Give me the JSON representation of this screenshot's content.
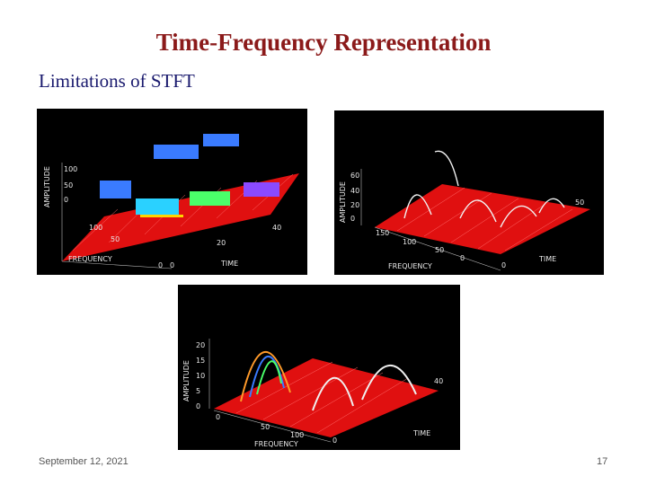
{
  "slide": {
    "title": "Time-Frequency Representation",
    "subtitle": "Limitations of STFT",
    "date": "September 12, 2021",
    "page_number": "17"
  },
  "plots": [
    {
      "z_label": "AMPLITUDE",
      "x_label": "FREQUENCY",
      "y_label": "TIME",
      "freq_ticks": [
        "100",
        "50",
        "0"
      ],
      "time_ticks": [
        "0",
        "20",
        "40"
      ],
      "z_ticks": [
        "100",
        "50",
        "0"
      ]
    },
    {
      "z_label": "AMPLITUDE",
      "x_label": "FREQUENCY",
      "y_label": "TIME",
      "freq_ticks": [
        "150",
        "100",
        "50",
        "0"
      ],
      "time_ticks": [
        "0",
        "50"
      ],
      "z_ticks": [
        "60",
        "40",
        "20",
        "0"
      ]
    },
    {
      "z_label": "AMPLITUDE",
      "x_label": "FREQUENCY",
      "y_label": "TIME",
      "freq_ticks": [
        "0",
        "50",
        "100"
      ],
      "time_ticks": [
        "0",
        "40"
      ],
      "z_ticks": [
        "20",
        "15",
        "10",
        "5",
        "0"
      ]
    }
  ],
  "colors": {
    "title": "#8b1a1a",
    "subtitle": "#1a1a6e",
    "surface": "#e01010",
    "plot_background": "#000000"
  }
}
